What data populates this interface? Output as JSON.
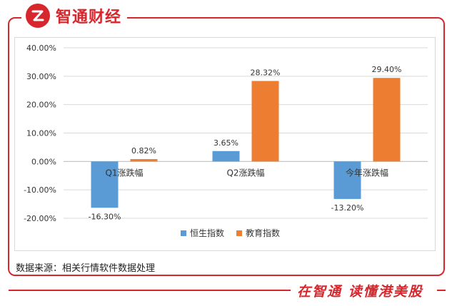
{
  "brand": {
    "name": "智通财经"
  },
  "footer": {
    "source": "数据来源：相关行情软件数据处理",
    "slogan": "在智通 读懂港美股"
  },
  "colors": {
    "accent": "#d7262c",
    "series1": "#5b9bd5",
    "series2": "#ed7d31"
  },
  "chart_data": {
    "type": "bar",
    "categories": [
      "Q1涨跌幅",
      "Q2涨跌幅",
      "今年涨跌幅"
    ],
    "series": [
      {
        "name": "恒生指数",
        "values": [
          -16.3,
          3.65,
          -13.2
        ],
        "labels": [
          "-16.30%",
          "3.65%",
          "-13.20%"
        ]
      },
      {
        "name": "教育指数",
        "values": [
          0.82,
          28.32,
          29.4
        ],
        "labels": [
          "0.82%",
          "28.32%",
          "29.40%"
        ]
      }
    ],
    "ylim": [
      -20,
      40
    ],
    "yticks": [
      40,
      30,
      20,
      10,
      0,
      -10,
      -20
    ],
    "ytick_labels": [
      "40.00%",
      "30.00%",
      "20.00%",
      "10.00%",
      "0.00%",
      "-10.00%",
      "-20.00%"
    ],
    "grid": true,
    "legend_position": "bottom",
    "title": "",
    "xlabel": "",
    "ylabel": ""
  }
}
